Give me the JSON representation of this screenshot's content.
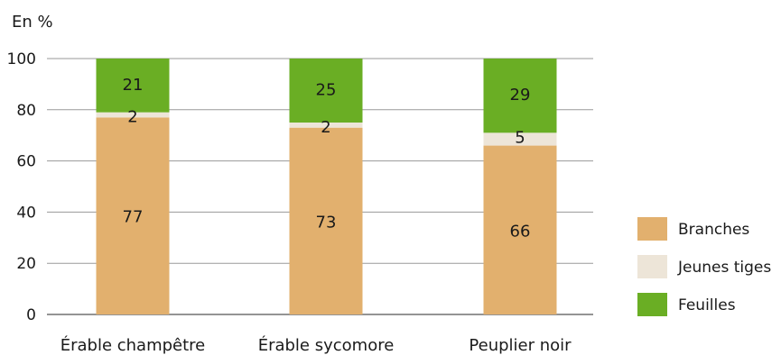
{
  "chart_data": {
    "type": "bar",
    "stacked": true,
    "unit_label": "En %",
    "categories": [
      "Érable champêtre",
      "Érable sycomore",
      "Peuplier noir"
    ],
    "series": [
      {
        "name": "Branches",
        "values": [
          77,
          73,
          66
        ],
        "color": "#e2b06e"
      },
      {
        "name": "Jeunes tiges",
        "values": [
          2,
          2,
          5
        ],
        "color": "#ede5d8"
      },
      {
        "name": "Feuilles",
        "values": [
          21,
          25,
          29
        ],
        "color": "#6aae24"
      }
    ],
    "ylim": [
      0,
      100
    ],
    "yticks": [
      0,
      20,
      40,
      60,
      80,
      100
    ],
    "grid": true,
    "legend_position": "right"
  }
}
